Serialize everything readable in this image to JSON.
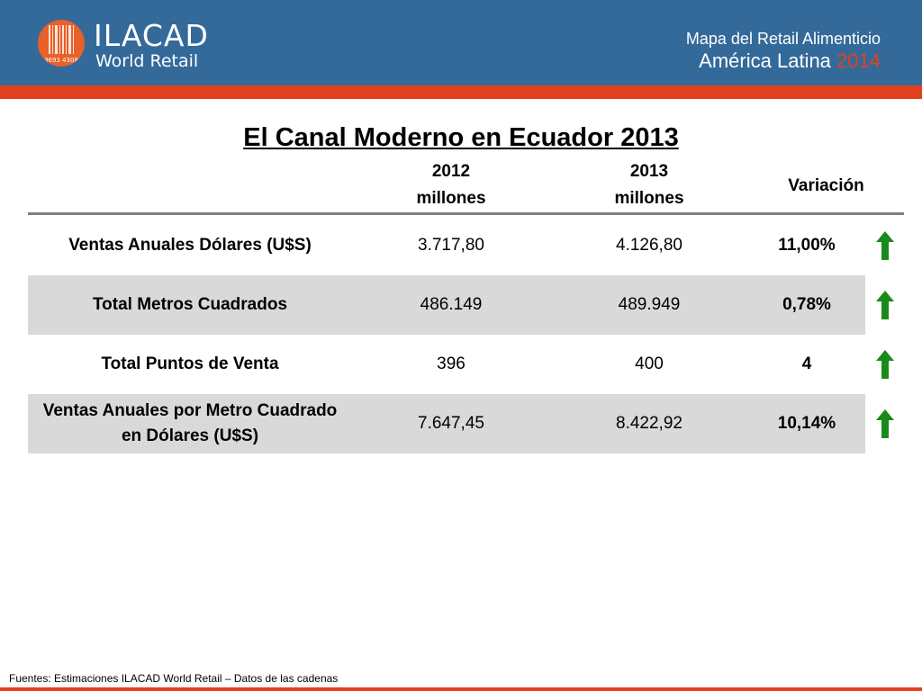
{
  "header": {
    "logo_name": "ILACAD",
    "logo_sub": "World Retail",
    "logo_numbers": "3693 4308",
    "subtitle_line1": "Mapa del Retail Alimenticio",
    "subtitle_line2": "América Latina",
    "subtitle_year": "2014",
    "colors": {
      "blue": "#346a9a",
      "accent": "#e2401f"
    }
  },
  "title": "El Canal Moderno en Ecuador 2013",
  "table": {
    "headers": {
      "c2012_l1": "2012",
      "c2012_l2": "millones",
      "c2013_l1": "2013",
      "c2013_l2": "millones",
      "variacion": "Variación"
    },
    "rows": [
      {
        "label": "Ventas Anuales Dólares (U$S)",
        "v2012": "3.717,80",
        "v2013": "4.126,80",
        "variacion": "11,00%",
        "trend": "up-arrow-icon"
      },
      {
        "label": "Total Metros Cuadrados",
        "v2012": "486.149",
        "v2013": "489.949",
        "variacion": "0,78%",
        "trend": "up-arrow-icon"
      },
      {
        "label": "Total Puntos de Venta",
        "v2012": "396",
        "v2013": "400",
        "variacion": "4",
        "trend": "up-arrow-icon"
      },
      {
        "label_l1": "Ventas Anuales por Metro Cuadrado",
        "label_l2": "en Dólares (U$S)",
        "v2012": "7.647,45",
        "v2013": "8.422,92",
        "variacion": "10,14%",
        "trend": "up-arrow-icon"
      }
    ],
    "arrow_color": "#1a8a1a",
    "shade_color": "#d9d9d9"
  },
  "footer": {
    "source": "Fuentes: Estimaciones ILACAD World Retail – Datos de las cadenas"
  }
}
